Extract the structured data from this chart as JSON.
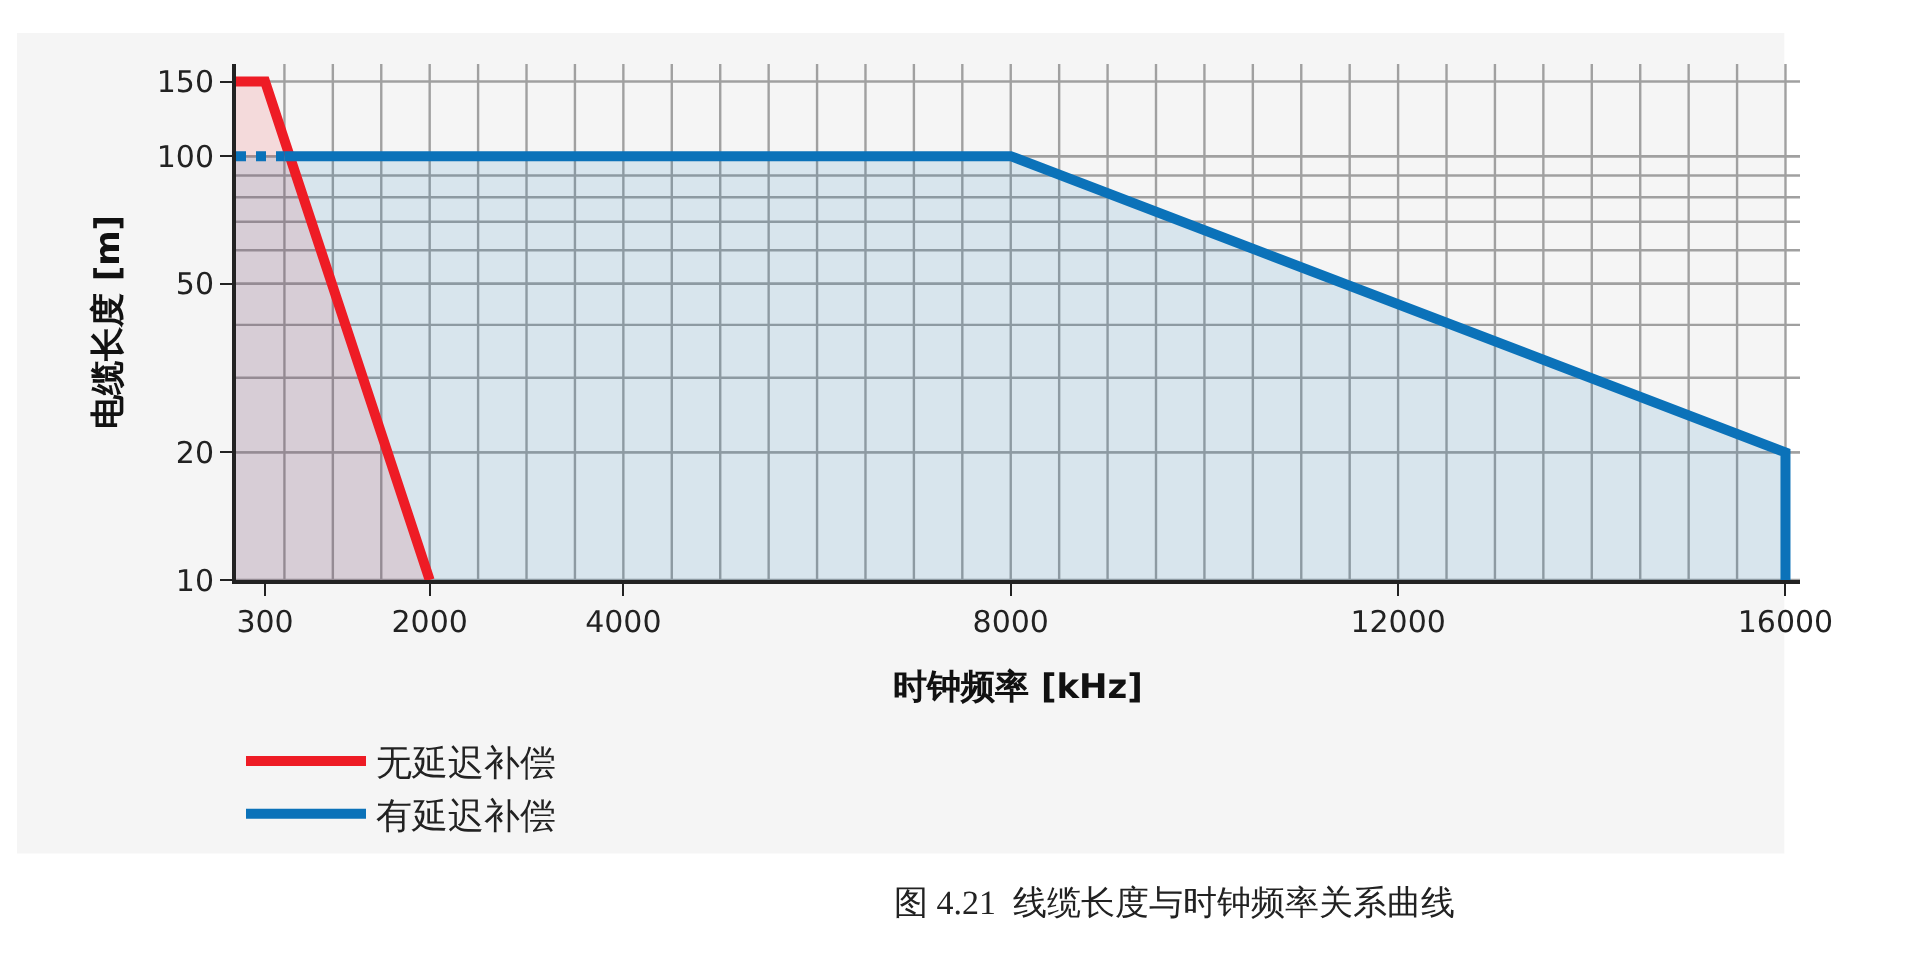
{
  "chart_data": {
    "type": "area",
    "xlabel": "时钟频率 [kHz]",
    "ylabel": "电缆长度 [m]",
    "log": "y",
    "grid": true,
    "legend": "bottom left",
    "xlim": [
      0,
      16150
    ],
    "xticks": [
      300,
      2000,
      4000,
      8000,
      12000,
      16000
    ],
    "ylim": [
      10,
      165
    ],
    "yticks": [
      10,
      20,
      50,
      100,
      150
    ],
    "series": [
      {
        "name": "无延迟补偿",
        "color": "#ee1c25",
        "x": [
          0,
          300,
          2000
        ],
        "values": [
          150,
          150,
          10
        ]
      },
      {
        "color": "#0b72b9",
        "x": [
          0,
          500
        ],
        "values": [
          100,
          100
        ],
        "line_style": "dotted"
      },
      {
        "name": "有延迟补偿",
        "color": "#0b72b9",
        "x": [
          500,
          8000,
          16000,
          16000
        ],
        "values": [
          100,
          100,
          20,
          10
        ]
      }
    ],
    "annotations": [
      "图 4.21  线缆长度与时钟频率关系曲线"
    ]
  }
}
